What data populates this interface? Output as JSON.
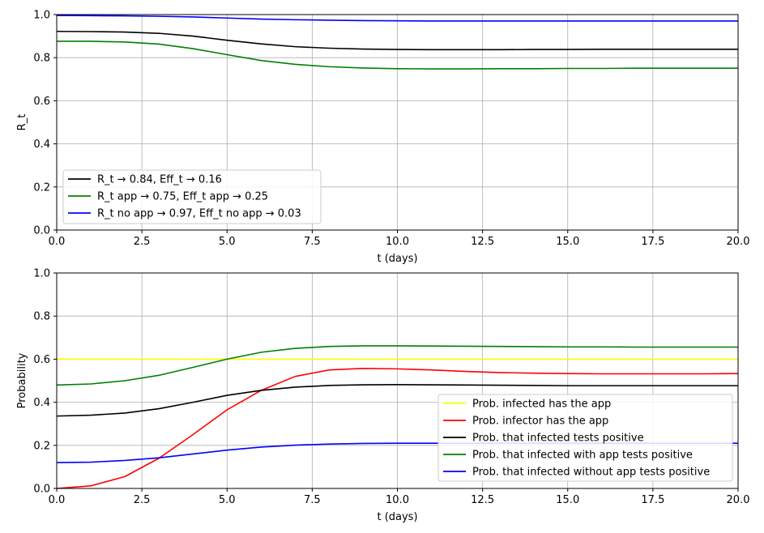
{
  "chart_data": [
    {
      "type": "line",
      "xlabel": "t (days)",
      "ylabel": "R_t",
      "xlim": [
        0,
        20
      ],
      "ylim": [
        0,
        1
      ],
      "xticks": [
        "0.0",
        "2.5",
        "5.0",
        "7.5",
        "10.0",
        "12.5",
        "15.0",
        "17.5",
        "20.0"
      ],
      "yticks": [
        "0.0",
        "0.2",
        "0.4",
        "0.6",
        "0.8",
        "1.0"
      ],
      "grid": true,
      "legend_position": "lower-left",
      "x": [
        0,
        1,
        2,
        3,
        4,
        5,
        6,
        7,
        8,
        9,
        10,
        11,
        12,
        13,
        14,
        15,
        16,
        17,
        18,
        19,
        20
      ],
      "series": [
        {
          "name": "R_t → 0.84, Eff_t → 0.16",
          "color": "#000000",
          "values": [
            0.922,
            0.921,
            0.919,
            0.913,
            0.9,
            0.881,
            0.864,
            0.851,
            0.844,
            0.84,
            0.838,
            0.837,
            0.837,
            0.837,
            0.838,
            0.838,
            0.839,
            0.839,
            0.839,
            0.839,
            0.839
          ]
        },
        {
          "name": "R_t app → 0.75, Eff_t app → 0.25",
          "color": "#008000",
          "values": [
            0.876,
            0.876,
            0.873,
            0.863,
            0.842,
            0.814,
            0.787,
            0.769,
            0.758,
            0.752,
            0.749,
            0.748,
            0.748,
            0.749,
            0.749,
            0.75,
            0.75,
            0.751,
            0.751,
            0.751,
            0.751
          ]
        },
        {
          "name": "R_t no app → 0.97, Eff_t no app → 0.03",
          "color": "#0000ff",
          "values": [
            0.996,
            0.995,
            0.994,
            0.992,
            0.989,
            0.984,
            0.979,
            0.976,
            0.974,
            0.972,
            0.971,
            0.97,
            0.97,
            0.97,
            0.97,
            0.97,
            0.97,
            0.97,
            0.97,
            0.97,
            0.97
          ]
        }
      ]
    },
    {
      "type": "line",
      "xlabel": "t (days)",
      "ylabel": "Probability",
      "xlim": [
        0,
        20
      ],
      "ylim": [
        0,
        1
      ],
      "xticks": [
        "0.0",
        "2.5",
        "5.0",
        "7.5",
        "10.0",
        "12.5",
        "15.0",
        "17.5",
        "20.0"
      ],
      "yticks": [
        "0.0",
        "0.2",
        "0.4",
        "0.6",
        "0.8",
        "1.0"
      ],
      "grid": true,
      "legend_position": "lower-right",
      "x": [
        0,
        1,
        2,
        3,
        4,
        5,
        6,
        7,
        8,
        9,
        10,
        11,
        12,
        13,
        14,
        15,
        16,
        17,
        18,
        19,
        20
      ],
      "series": [
        {
          "name": "Prob. infected has the app",
          "color": "#ffff00",
          "values": [
            0.6,
            0.6,
            0.6,
            0.6,
            0.6,
            0.6,
            0.6,
            0.6,
            0.6,
            0.6,
            0.6,
            0.6,
            0.6,
            0.6,
            0.6,
            0.6,
            0.6,
            0.6,
            0.6,
            0.6,
            0.6
          ]
        },
        {
          "name": "Prob. infector has the app",
          "color": "#ff0000",
          "values": [
            0.0,
            0.012,
            0.055,
            0.14,
            0.25,
            0.365,
            0.455,
            0.52,
            0.55,
            0.557,
            0.555,
            0.55,
            0.543,
            0.538,
            0.535,
            0.533,
            0.532,
            0.532,
            0.532,
            0.532,
            0.533
          ]
        },
        {
          "name": "Prob. that infected tests positive",
          "color": "#000000",
          "values": [
            0.336,
            0.34,
            0.35,
            0.37,
            0.4,
            0.432,
            0.455,
            0.47,
            0.478,
            0.481,
            0.482,
            0.481,
            0.48,
            0.479,
            0.478,
            0.477,
            0.477,
            0.477,
            0.477,
            0.477,
            0.477
          ]
        },
        {
          "name": "Prob. that infected with app tests positive",
          "color": "#008000",
          "values": [
            0.48,
            0.485,
            0.5,
            0.525,
            0.562,
            0.6,
            0.632,
            0.65,
            0.659,
            0.662,
            0.662,
            0.661,
            0.66,
            0.659,
            0.658,
            0.657,
            0.657,
            0.656,
            0.656,
            0.656,
            0.656
          ]
        },
        {
          "name": "Prob. that infected without app tests positive",
          "color": "#0000ff",
          "values": [
            0.12,
            0.122,
            0.13,
            0.142,
            0.16,
            0.178,
            0.192,
            0.201,
            0.206,
            0.209,
            0.21,
            0.21,
            0.21,
            0.21,
            0.21,
            0.21,
            0.21,
            0.21,
            0.21,
            0.21,
            0.21
          ]
        }
      ]
    }
  ]
}
